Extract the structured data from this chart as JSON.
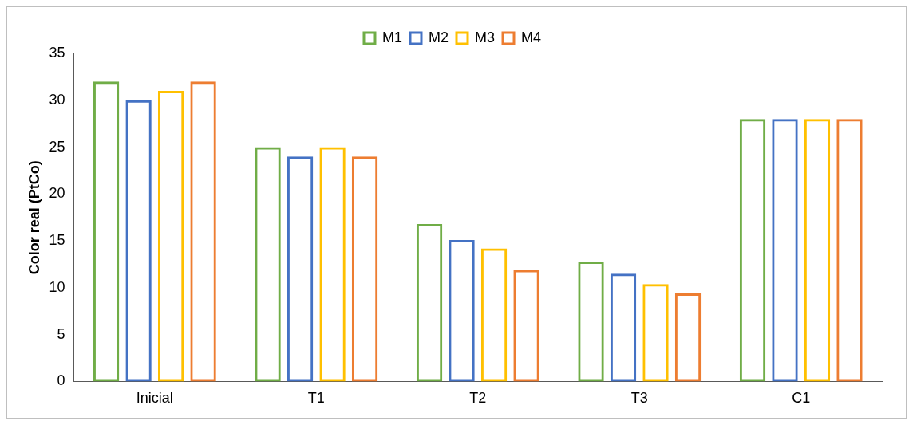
{
  "chart_data": {
    "type": "bar",
    "ylabel": "Color real (PtCo)",
    "categories": [
      "Inicial",
      "T1",
      "T2",
      "T3",
      "C1"
    ],
    "series": [
      {
        "name": "M1",
        "color": "#70ad47",
        "values": [
          32,
          25,
          16.8,
          12.8,
          28
        ]
      },
      {
        "name": "M2",
        "color": "#4472c4",
        "values": [
          30,
          24,
          15.1,
          11.5,
          28
        ]
      },
      {
        "name": "M3",
        "color": "#ffc000",
        "values": [
          31,
          25,
          14.2,
          10.4,
          28
        ]
      },
      {
        "name": "M4",
        "color": "#ed7d31",
        "values": [
          32,
          24,
          11.9,
          9.4,
          28
        ]
      }
    ],
    "ylim": [
      0,
      35
    ],
    "yticks": [
      0,
      5,
      10,
      15,
      20,
      25,
      30,
      35
    ],
    "grid": false,
    "legend": "top"
  }
}
